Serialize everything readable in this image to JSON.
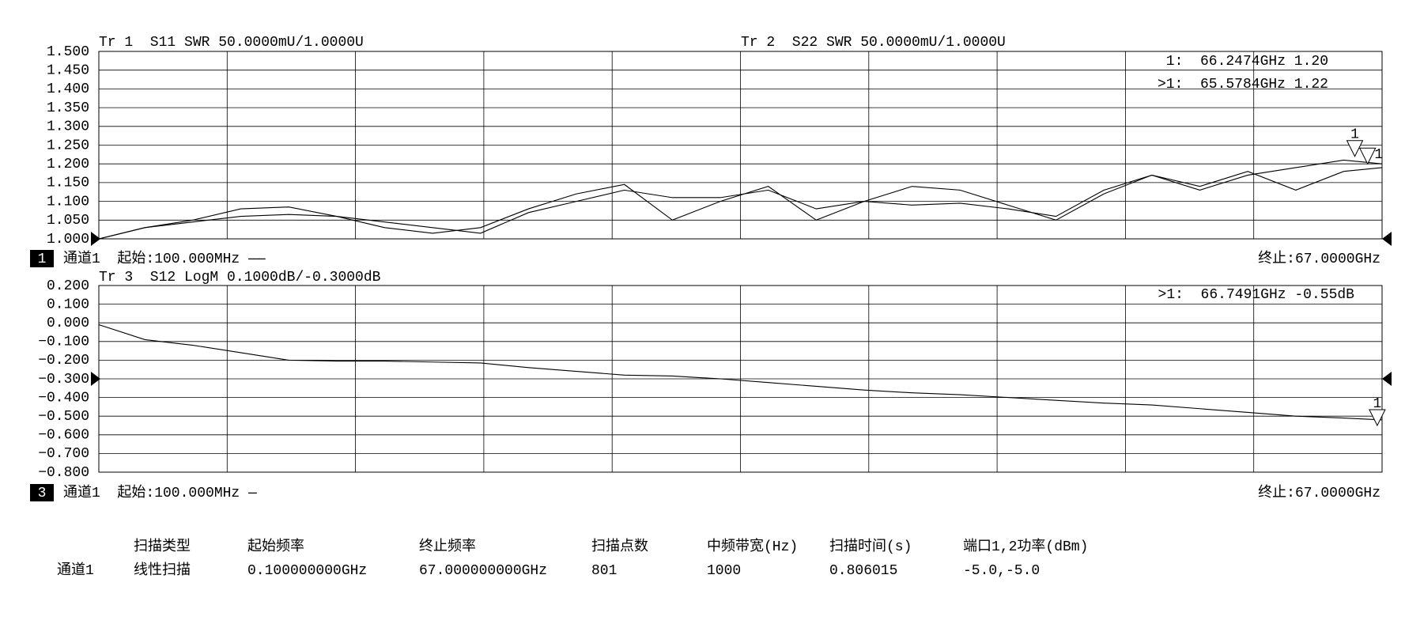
{
  "chart_data": [
    {
      "type": "line",
      "trace_labels": [
        "Tr 1  S11 SWR 50.0000mU/1.0000U",
        "Tr 2  S22 SWR 50.0000mU/1.0000U"
      ],
      "marker_readouts": [
        "1:  66.2474GHz 1.20",
        ">1:  65.5784GHz 1.22"
      ],
      "channel_box": "1",
      "start_label": "通道1  起始:100.000MHz ——",
      "stop_label": "终止:67.0000GHz",
      "xlim": [
        0.1,
        67
      ],
      "ylim": [
        1.0,
        1.5
      ],
      "yticks": [
        {
          "value": 1.5,
          "label": "1.500"
        },
        {
          "value": 1.45,
          "label": "1.450"
        },
        {
          "value": 1.4,
          "label": "1.400"
        },
        {
          "value": 1.35,
          "label": "1.350"
        },
        {
          "value": 1.3,
          "label": "1.300"
        },
        {
          "value": 1.25,
          "label": "1.250"
        },
        {
          "value": 1.2,
          "label": "1.200"
        },
        {
          "value": 1.15,
          "label": "1.150"
        },
        {
          "value": 1.1,
          "label": "1.100"
        },
        {
          "value": 1.05,
          "label": "1.050"
        },
        {
          "value": 1.0,
          "label": "1.000"
        }
      ],
      "grid": true,
      "reference_level": 1.0,
      "x": [
        0.1,
        2.5,
        5,
        7.5,
        10,
        12.5,
        15,
        17.5,
        20,
        22.5,
        25,
        27.5,
        30,
        32.5,
        35,
        37.5,
        40,
        42.5,
        45,
        47.5,
        50,
        52.5,
        55,
        57.5,
        60,
        62.5,
        65,
        67
      ],
      "series": [
        {
          "color": "#000000",
          "values": [
            1.0,
            1.03,
            1.05,
            1.08,
            1.085,
            1.06,
            1.03,
            1.015,
            1.03,
            1.08,
            1.12,
            1.145,
            1.05,
            1.1,
            1.14,
            1.05,
            1.1,
            1.14,
            1.13,
            1.09,
            1.05,
            1.12,
            1.17,
            1.14,
            1.18,
            1.13,
            1.18,
            1.19
          ]
        },
        {
          "color": "#000000",
          "values": [
            1.0,
            1.03,
            1.045,
            1.06,
            1.065,
            1.06,
            1.045,
            1.03,
            1.015,
            1.07,
            1.1,
            1.13,
            1.11,
            1.11,
            1.13,
            1.08,
            1.1,
            1.09,
            1.095,
            1.08,
            1.06,
            1.13,
            1.17,
            1.13,
            1.17,
            1.19,
            1.21,
            1.2
          ]
        }
      ],
      "markers": [
        {
          "label": "1",
          "x": 65.5784,
          "value": 1.22
        },
        {
          "label": "1",
          "x": 66.2474,
          "value": 1.2
        }
      ]
    },
    {
      "type": "line",
      "trace_labels": [
        "Tr 3  S12 LogM 0.1000dB/-0.3000dB"
      ],
      "marker_readouts": [
        ">1:  66.7491GHz -0.55dB"
      ],
      "channel_box": "3",
      "start_label": "通道1  起始:100.000MHz —",
      "stop_label": "终止:67.0000GHz",
      "xlim": [
        0.1,
        67
      ],
      "ylim": [
        -0.8,
        0.2
      ],
      "yticks": [
        {
          "value": 0.2,
          "label": "0.200"
        },
        {
          "value": 0.1,
          "label": "0.100"
        },
        {
          "value": 0,
          "label": "0.000"
        },
        {
          "value": -0.1,
          "label": "−0.100"
        },
        {
          "value": -0.2,
          "label": "−0.200"
        },
        {
          "value": -0.3,
          "label": "−0.300"
        },
        {
          "value": -0.4,
          "label": "−0.400"
        },
        {
          "value": -0.5,
          "label": "−0.500"
        },
        {
          "value": -0.6,
          "label": "−0.600"
        },
        {
          "value": -0.7,
          "label": "−0.700"
        },
        {
          "value": -0.8,
          "label": "−0.800"
        }
      ],
      "grid": true,
      "reference_level": -0.3,
      "x": [
        0.1,
        2.5,
        5,
        7.5,
        10,
        12.5,
        15,
        17.5,
        20,
        22.5,
        25,
        27.5,
        30,
        32.5,
        35,
        37.5,
        40,
        42.5,
        45,
        47.5,
        50,
        52.5,
        55,
        57.5,
        60,
        62.5,
        65,
        67
      ],
      "series": [
        {
          "color": "#000000",
          "values": [
            -0.01,
            -0.09,
            -0.12,
            -0.16,
            -0.2,
            -0.205,
            -0.205,
            -0.21,
            -0.215,
            -0.24,
            -0.26,
            -0.28,
            -0.285,
            -0.3,
            -0.32,
            -0.34,
            -0.36,
            -0.375,
            -0.385,
            -0.4,
            -0.415,
            -0.43,
            -0.44,
            -0.46,
            -0.48,
            -0.5,
            -0.51,
            -0.52
          ]
        }
      ],
      "markers": [
        {
          "label": "1",
          "x": 66.7491,
          "value": -0.55
        }
      ]
    }
  ],
  "settings_table": {
    "headers": [
      "扫描类型",
      "起始频率",
      "终止频率",
      "扫描点数",
      "中频带宽(Hz)",
      "扫描时间(s)",
      "端口1,2功率(dBm)"
    ],
    "rows": [
      {
        "label": "通道1",
        "cells": [
          "线性扫描",
          "0.100000000GHz",
          "67.000000000GHz",
          "801",
          "1000",
          "0.806015",
          "-5.0,-5.0"
        ]
      }
    ]
  }
}
